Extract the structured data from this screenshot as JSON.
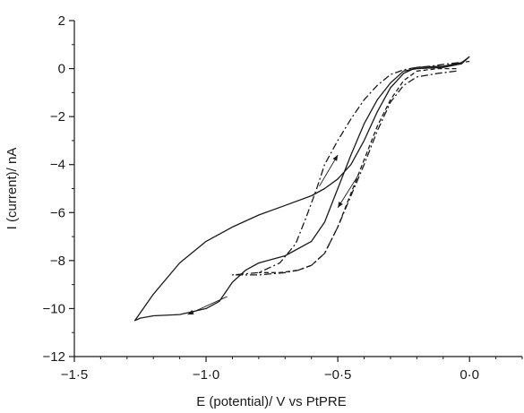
{
  "chart_data": {
    "type": "line",
    "xlabel": "E (potential)/ V vs PtPRE",
    "ylabel": "I (current)/ nA",
    "xlim": [
      -1.5,
      0.2
    ],
    "ylim": [
      -12,
      2
    ],
    "x_tick_labels": [
      "−1·5",
      "−1·0",
      "−0·5",
      "0·0"
    ],
    "x_tick_values": [
      -1.5,
      -1.0,
      -0.5,
      0.0
    ],
    "y_tick_labels": [
      "−12",
      "−10",
      "−8",
      "−6",
      "−4",
      "−2",
      "0",
      "2"
    ],
    "y_tick_values": [
      -12,
      -10,
      -8,
      -6,
      -4,
      -2,
      0,
      2
    ],
    "grid": false,
    "legend": "none",
    "series": [
      {
        "style": "solid",
        "x": [
          0.0,
          -0.03,
          -0.1,
          -0.2,
          -0.25,
          -0.3,
          -0.35,
          -0.4,
          -0.45,
          -0.5,
          -0.55,
          -0.6,
          -0.7,
          -0.8,
          -0.9,
          -1.0,
          -1.1,
          -1.2,
          -1.27,
          -1.25,
          -1.2,
          -1.1,
          -1.0,
          -0.95,
          -0.9,
          -0.85,
          -0.8,
          -0.7,
          -0.6,
          -0.55,
          -0.5,
          -0.45,
          -0.4,
          -0.35,
          -0.3,
          -0.25,
          -0.2,
          -0.1,
          -0.03,
          0.0
        ],
        "y": [
          0.5,
          0.25,
          0.1,
          0.05,
          -0.2,
          -0.8,
          -1.8,
          -3.0,
          -4.0,
          -4.6,
          -5.0,
          -5.3,
          -5.7,
          -6.1,
          -6.6,
          -7.2,
          -8.1,
          -9.4,
          -10.5,
          -10.4,
          -10.3,
          -10.25,
          -10.0,
          -9.7,
          -8.9,
          -8.4,
          -8.1,
          -7.8,
          -7.2,
          -6.4,
          -5.0,
          -3.6,
          -2.3,
          -1.3,
          -0.6,
          -0.1,
          0.0,
          0.05,
          0.2,
          0.5
        ]
      },
      {
        "style": "dashed",
        "x": [
          -0.05,
          -0.12,
          -0.2,
          -0.25,
          -0.3,
          -0.35,
          -0.4,
          -0.45,
          -0.5,
          -0.55,
          -0.6,
          -0.65,
          -0.72,
          -0.8
        ],
        "y": [
          0.0,
          0.0,
          -0.1,
          -0.5,
          -1.3,
          -2.4,
          -3.8,
          -5.2,
          -6.6,
          -7.7,
          -8.2,
          -8.4,
          -8.5,
          -8.5
        ]
      },
      {
        "style": "dash-dot",
        "x": [
          -0.05,
          -0.12,
          -0.2,
          -0.25,
          -0.3,
          -0.35,
          -0.4,
          -0.45,
          -0.5,
          -0.55,
          -0.6,
          -0.65,
          -0.7,
          -0.8,
          -0.9,
          -0.8,
          -0.72,
          -0.66,
          -0.62,
          -0.58,
          -0.55,
          -0.5,
          -0.45,
          -0.4,
          -0.35,
          -0.3,
          -0.25,
          -0.2,
          -0.15,
          -0.08,
          0.0
        ],
        "y": [
          -0.1,
          -0.2,
          -0.35,
          -0.7,
          -1.4,
          -2.6,
          -4.0,
          -5.3,
          -6.6,
          -7.7,
          -8.2,
          -8.4,
          -8.5,
          -8.6,
          -8.6,
          -8.5,
          -8.1,
          -7.3,
          -6.2,
          -5.0,
          -4.0,
          -3.0,
          -2.1,
          -1.3,
          -0.7,
          -0.25,
          -0.05,
          0.05,
          0.1,
          0.2,
          0.3
        ]
      }
    ],
    "arrows": [
      {
        "from": [
          -0.92,
          -9.5
        ],
        "to": [
          -1.07,
          -10.25
        ]
      },
      {
        "from": [
          -0.57,
          -4.9
        ],
        "to": [
          -0.5,
          -3.6
        ]
      },
      {
        "from": [
          -0.42,
          -4.4
        ],
        "to": [
          -0.5,
          -5.8
        ]
      }
    ]
  }
}
